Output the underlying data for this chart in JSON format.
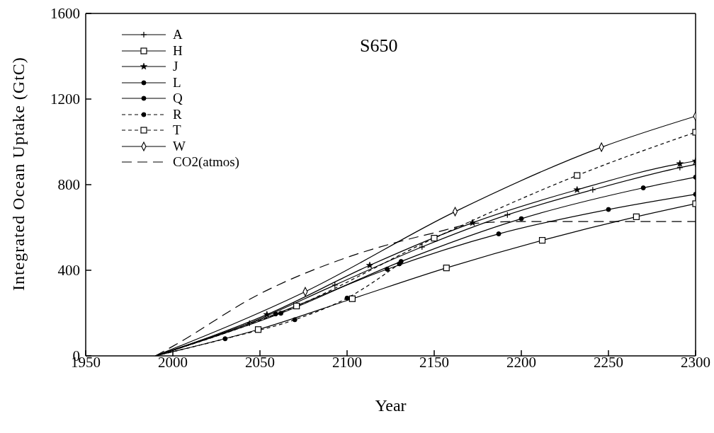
{
  "chart_data": {
    "type": "line",
    "title": "S650",
    "xlabel": "Year",
    "ylabel": "Integrated Ocean Uptake (GtC)",
    "xlim": [
      1950,
      2300
    ],
    "xticks": [
      1950,
      2000,
      2050,
      2100,
      2150,
      2200,
      2250,
      2300
    ],
    "ylim": [
      0,
      1600
    ],
    "yticks": [
      0,
      400,
      800,
      1200,
      1600
    ],
    "grid": false,
    "legend": "top left",
    "series": [
      {
        "name": "A",
        "color": "#000000",
        "marker": "cross",
        "line_style": "solid",
        "x": [
          1990,
          2044,
          2093,
          2143,
          2192,
          2241,
          2291,
          2300
        ],
        "values": [
          0,
          153,
          331,
          509,
          659,
          776,
          880,
          895
        ]
      },
      {
        "name": "H",
        "color": "#000000",
        "marker": "square",
        "line_style": "solid",
        "x": [
          1990,
          2049,
          2103,
          2157,
          2212,
          2266,
          2300
        ],
        "values": [
          0,
          123,
          267,
          411,
          540,
          650,
          711
        ]
      },
      {
        "name": "J",
        "color": "#000000",
        "marker": "star",
        "line_style": "solid",
        "x": [
          1990,
          2054,
          2113,
          2172,
          2232,
          2291,
          2300
        ],
        "values": [
          0,
          193,
          423,
          622,
          776,
          898,
          910
        ]
      },
      {
        "name": "L",
        "color": "#000000",
        "marker": "circle",
        "line_style": "solid",
        "x": [
          1990,
          2059,
          2123,
          2187,
          2250,
          2300
        ],
        "values": [
          0,
          196,
          405,
          570,
          684,
          755
        ]
      },
      {
        "name": "Q",
        "color": "#000000",
        "marker": "circle",
        "line_style": "solid",
        "x": [
          1990,
          2062,
          2131,
          2200,
          2270,
          2300
        ],
        "values": [
          0,
          199,
          441,
          641,
          785,
          835
        ]
      },
      {
        "name": "R",
        "color": "#000000",
        "marker": "circle",
        "line_style": "dashed",
        "x": [
          1990,
          2030,
          2070,
          2100,
          2130
        ],
        "values": [
          0,
          80,
          169,
          270,
          430
        ]
      },
      {
        "name": "T",
        "color": "#000000",
        "marker": "square",
        "line_style": "dashed",
        "x": [
          1990,
          2071,
          2150,
          2232,
          2300
        ],
        "values": [
          0,
          233,
          550,
          843,
          1045
        ]
      },
      {
        "name": "W",
        "color": "#000000",
        "marker": "diamond",
        "line_style": "solid",
        "x": [
          1990,
          2076,
          2162,
          2246,
          2300
        ],
        "values": [
          0,
          300,
          674,
          975,
          1120
        ]
      },
      {
        "name": "CO2(atmos)",
        "color": "#000000",
        "marker": "none",
        "line_style": "dashed",
        "x": [
          1990,
          2000,
          2050,
          2100,
          2150,
          2175,
          2200,
          2300
        ],
        "values": [
          0,
          45,
          290,
          460,
          575,
          620,
          628,
          628
        ]
      }
    ]
  }
}
